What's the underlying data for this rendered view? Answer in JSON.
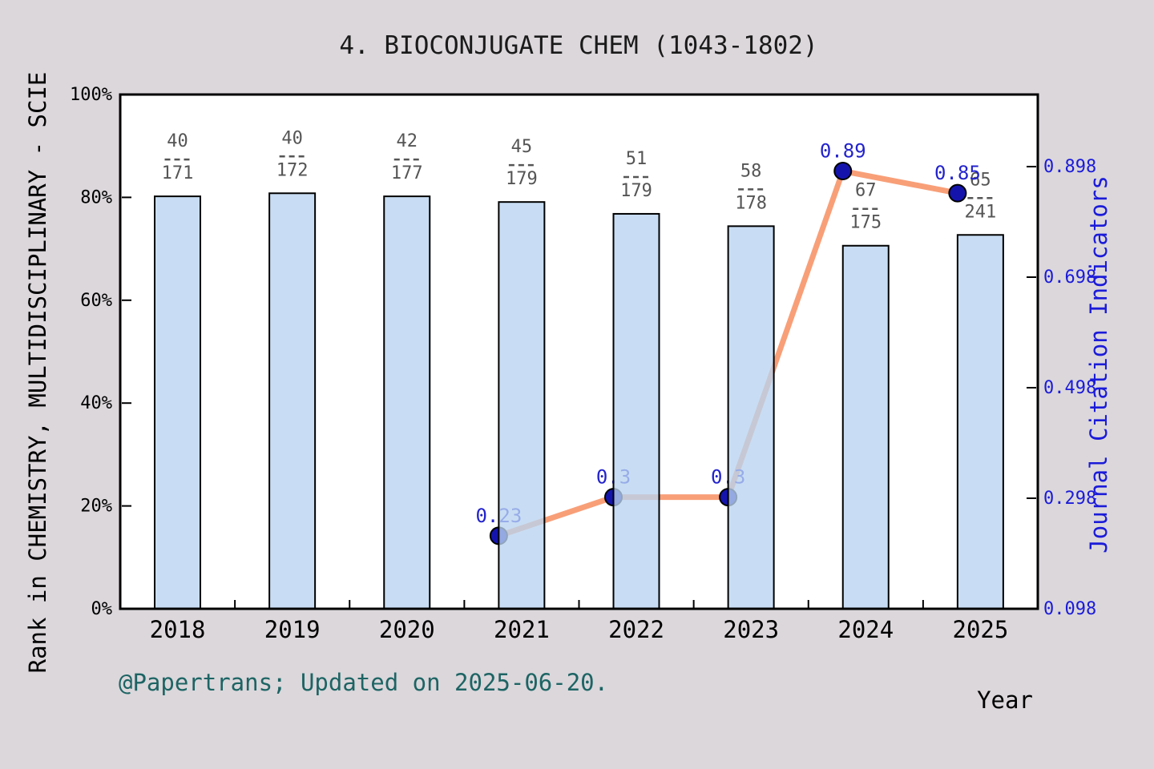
{
  "page": {
    "background_color": "#dbd7db",
    "footer": "@Papertrans; Updated on 2025-06-20.",
    "footer_color": "#1d6464"
  },
  "chart_data": {
    "type": "bar+line",
    "title": "4. BIOCONJUGATE CHEM (1043-1802)",
    "categories": [
      "2018",
      "2019",
      "2020",
      "2021",
      "2022",
      "2023",
      "2024",
      "2025"
    ],
    "x_axis": {
      "label": "Year"
    },
    "left_axis": {
      "label": "Rank in CHEMISTRY, MULTIDISCIPLINARY - SCIE",
      "tick_labels": [
        "0%",
        "20%",
        "40%",
        "60%",
        "80%",
        "100%"
      ],
      "tick_values": [
        0,
        20,
        40,
        60,
        80,
        100
      ],
      "range": [
        0,
        100
      ]
    },
    "right_axis": {
      "label": "Journal Citation Indicators",
      "tick_labels": [
        "0.098",
        "0.298",
        "0.498",
        "0.698",
        "0.898"
      ],
      "tick_values": [
        0.098,
        0.298,
        0.498,
        0.698,
        0.898
      ]
    },
    "bars": {
      "name": "Rank percentile in category (bar heights, % of left axis)",
      "values_percent": [
        80.2,
        80.8,
        80.2,
        79.1,
        76.8,
        74.4,
        70.6,
        72.7
      ],
      "labels": [
        {
          "year": "2018",
          "rank": 40,
          "total": 171
        },
        {
          "year": "2019",
          "rank": 40,
          "total": 172
        },
        {
          "year": "2020",
          "rank": 42,
          "total": 177
        },
        {
          "year": "2021",
          "rank": 45,
          "total": 179
        },
        {
          "year": "2022",
          "rank": 51,
          "total": 179
        },
        {
          "year": "2023",
          "rank": 58,
          "total": 178
        },
        {
          "year": "2024",
          "rank": 67,
          "total": 175
        },
        {
          "year": "2025",
          "rank": 65,
          "total": 241
        }
      ]
    },
    "line": {
      "name": "Journal Citation Indicators",
      "years": [
        "2021",
        "2022",
        "2023",
        "2024",
        "2025"
      ],
      "values": [
        0.23,
        0.3,
        0.3,
        0.89,
        0.85
      ],
      "point_labels": [
        "0.23",
        "0.3",
        "0.3",
        "0.89",
        "0.85"
      ]
    },
    "legend": {
      "visible": false
    },
    "grid": {
      "visible": false
    },
    "colors": {
      "bar_fill": "#b8d4f0",
      "bar_fill_opacity": 0.78,
      "bar_border": "#000000",
      "line": "#f89f78",
      "marker_fill": "#1414ad",
      "marker_border": "#000000",
      "point_label": "#2323cd",
      "right_axis_text": "#1b1bd9",
      "left_axis_text": "#000000",
      "fraction_text": "#555555",
      "frame": "#000000",
      "plot_background": "#ffffff"
    }
  }
}
